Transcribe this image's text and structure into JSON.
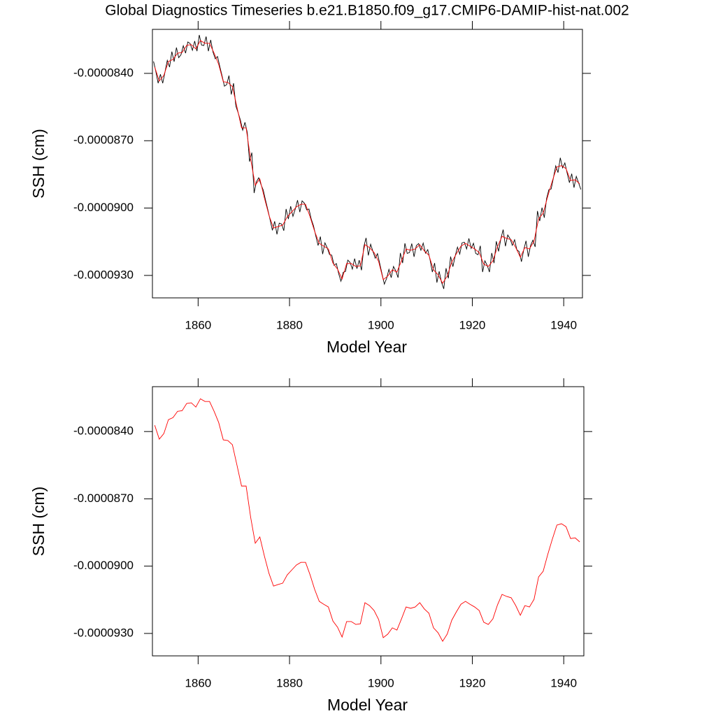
{
  "chart_data": [
    {
      "type": "line",
      "title": "Global Diagnostics Timeseries b.e21.B1850.f09_g17.CMIP6-DAMIP-hist-nat.002",
      "xlabel": "Model Year",
      "ylabel": "SSH (cm)",
      "xlim": [
        1850,
        1944.1
      ],
      "xticks": [
        1860,
        1880,
        1900,
        1920,
        1940
      ],
      "ylim": [
        -9.4e-05,
        -8.204e-05
      ],
      "yticks": [
        {
          "value": -9.3e-05,
          "label": "-0.0000930"
        },
        {
          "value": -9e-05,
          "label": "-0.0000900"
        },
        {
          "value": -8.7e-05,
          "label": "-0.0000870"
        },
        {
          "value": -8.4e-05,
          "label": "-0.0000840"
        }
      ],
      "series": [
        {
          "color": "#000000",
          "x": [
            1850.25,
            1850.75,
            1851.25,
            1851.75,
            1852.25,
            1852.75,
            1853.25,
            1853.75,
            1854.25,
            1854.75,
            1855.25,
            1855.75,
            1856.25,
            1856.75,
            1857.25,
            1857.75,
            1858.25,
            1858.75,
            1859.25,
            1859.75,
            1860.25,
            1860.75,
            1861.25,
            1861.75,
            1862.25,
            1862.75,
            1863.25,
            1863.75,
            1864.25,
            1864.75,
            1865.25,
            1865.75,
            1866.25,
            1866.75,
            1867.25,
            1867.75,
            1868.25,
            1868.75,
            1869.25,
            1869.75,
            1870.25,
            1870.75,
            1871.25,
            1871.75,
            1872.25,
            1872.75,
            1873.25,
            1873.75,
            1874.25,
            1874.75,
            1875.25,
            1875.75,
            1876.25,
            1876.75,
            1877.25,
            1877.75,
            1878.25,
            1878.75,
            1879.25,
            1879.75,
            1880.25,
            1880.75,
            1881.25,
            1881.75,
            1882.25,
            1882.75,
            1883.25,
            1883.75,
            1884.25,
            1884.75,
            1885.25,
            1885.75,
            1886.25,
            1886.75,
            1887.25,
            1887.75,
            1888.25,
            1888.75,
            1889.25,
            1889.75,
            1890.25,
            1890.75,
            1891.25,
            1891.75,
            1892.25,
            1892.75,
            1893.25,
            1893.75,
            1894.25,
            1894.75,
            1895.25,
            1895.75,
            1896.25,
            1896.75,
            1897.25,
            1897.75,
            1898.25,
            1898.75,
            1899.25,
            1899.75,
            1900.25,
            1900.75,
            1901.25,
            1901.75,
            1902.25,
            1902.75,
            1903.25,
            1903.75,
            1904.25,
            1904.75,
            1905.25,
            1905.75,
            1906.25,
            1906.75,
            1907.25,
            1907.75,
            1908.25,
            1908.75,
            1909.25,
            1909.75,
            1910.25,
            1910.75,
            1911.25,
            1911.75,
            1912.25,
            1912.75,
            1913.25,
            1913.75,
            1914.25,
            1914.75,
            1915.25,
            1915.75,
            1916.25,
            1916.75,
            1917.25,
            1917.75,
            1918.25,
            1918.75,
            1919.25,
            1919.75,
            1920.25,
            1920.75,
            1921.25,
            1921.75,
            1922.25,
            1922.75,
            1923.25,
            1923.75,
            1924.25,
            1924.75,
            1925.25,
            1925.75,
            1926.25,
            1926.75,
            1927.25,
            1927.75,
            1928.25,
            1928.75,
            1929.25,
            1929.75,
            1930.25,
            1930.75,
            1931.25,
            1931.75,
            1932.25,
            1932.75,
            1933.25,
            1933.75,
            1934.25,
            1934.75,
            1935.25,
            1935.75,
            1936.25,
            1936.75,
            1937.25,
            1937.75,
            1938.25,
            1938.75,
            1939.25,
            1939.75,
            1940.25,
            1940.75,
            1941.25,
            1941.75,
            1942.25,
            1942.75,
            1943.25,
            1943.75
          ],
          "values": [
            -8.347e-05,
            -8.392e-05,
            -8.444e-05,
            -8.404e-05,
            -8.444e-05,
            -8.394e-05,
            -8.342e-05,
            -8.372e-05,
            -8.303e-05,
            -8.348e-05,
            -8.285e-05,
            -8.33e-05,
            -8.317e-05,
            -8.277e-05,
            -8.31e-05,
            -8.26e-05,
            -8.267e-05,
            -8.297e-05,
            -8.256e-05,
            -8.301e-05,
            -8.229e-05,
            -8.274e-05,
            -8.276e-05,
            -8.236e-05,
            -8.301e-05,
            -8.251e-05,
            -8.305e-05,
            -8.335e-05,
            -8.325e-05,
            -8.37e-05,
            -8.412e-05,
            -8.457e-05,
            -8.45e-05,
            -8.41e-05,
            -8.494e-05,
            -8.444e-05,
            -8.545e-05,
            -8.575e-05,
            -8.608e-05,
            -8.653e-05,
            -8.618e-05,
            -8.663e-05,
            -8.793e-05,
            -8.753e-05,
            -8.933e-05,
            -8.883e-05,
            -8.865e-05,
            -8.895e-05,
            -8.92e-05,
            -8.965e-05,
            -9.007e-05,
            -9.052e-05,
            -9.099e-05,
            -9.059e-05,
            -9.117e-05,
            -9.067e-05,
            -9.071e-05,
            -9.101e-05,
            -9.004e-05,
            -9.049e-05,
            -8.992e-05,
            -9.037e-05,
            -9.005e-05,
            -8.965e-05,
            -9.018e-05,
            -8.968e-05,
            -8.978e-05,
            -9.008e-05,
            -9.004e-05,
            -9.049e-05,
            -9.079e-05,
            -9.124e-05,
            -9.167e-05,
            -9.127e-05,
            -9.205e-05,
            -9.155e-05,
            -9.177e-05,
            -9.207e-05,
            -9.21e-05,
            -9.255e-05,
            -9.247e-05,
            -9.292e-05,
            -9.326e-05,
            -9.286e-05,
            -9.282e-05,
            -9.232e-05,
            -9.242e-05,
            -9.272e-05,
            -9.225e-05,
            -9.27e-05,
            -9.232e-05,
            -9.277e-05,
            -9.173e-05,
            -9.133e-05,
            -9.211e-05,
            -9.161e-05,
            -9.193e-05,
            -9.223e-05,
            -9.203e-05,
            -9.248e-05,
            -9.294e-05,
            -9.339e-05,
            -9.313e-05,
            -9.273e-05,
            -9.31e-05,
            -9.26e-05,
            -9.28e-05,
            -9.31e-05,
            -9.2e-05,
            -9.245e-05,
            -9.157e-05,
            -9.202e-05,
            -9.198e-05,
            -9.158e-05,
            -9.217e-05,
            -9.167e-05,
            -9.158e-05,
            -9.188e-05,
            -9.156e-05,
            -9.201e-05,
            -9.185e-05,
            -9.23e-05,
            -9.285e-05,
            -9.245e-05,
            -9.332e-05,
            -9.282e-05,
            -9.33e-05,
            -9.36e-05,
            -9.268e-05,
            -9.313e-05,
            -9.216e-05,
            -9.261e-05,
            -9.214e-05,
            -9.174e-05,
            -9.205e-05,
            -9.155e-05,
            -9.152e-05,
            -9.182e-05,
            -9.135e-05,
            -9.18e-05,
            -9.157e-05,
            -9.202e-05,
            -9.208e-05,
            -9.168e-05,
            -9.285e-05,
            -9.235e-05,
            -9.255e-05,
            -9.285e-05,
            -9.2e-05,
            -9.245e-05,
            -9.148e-05,
            -9.193e-05,
            -9.136e-05,
            -9.096e-05,
            -9.17e-05,
            -9.12e-05,
            -9.136e-05,
            -9.166e-05,
            -9.141e-05,
            -9.186e-05,
            -9.194e-05,
            -9.239e-05,
            -9.186e-05,
            -9.146e-05,
            -9.217e-05,
            -9.167e-05,
            -9.143e-05,
            -9.173e-05,
            -9.013e-05,
            -9.058e-05,
            -8.998e-05,
            -9.043e-05,
            -8.958e-05,
            -8.918e-05,
            -8.915e-05,
            -8.865e-05,
            -8.812e-05,
            -8.842e-05,
            -8.776e-05,
            -8.821e-05,
            -8.799e-05,
            -8.844e-05,
            -8.887e-05,
            -8.847e-05,
            -8.909e-05,
            -8.859e-05,
            -8.887e-05,
            -8.917e-05
          ]
        },
        {
          "color": "#ff0000",
          "x": [
            1850.5,
            1851.5,
            1852.5,
            1853.5,
            1854.5,
            1855.5,
            1856.5,
            1857.5,
            1858.5,
            1859.5,
            1860.5,
            1861.5,
            1862.5,
            1863.5,
            1864.5,
            1865.5,
            1866.5,
            1867.5,
            1868.5,
            1869.5,
            1870.5,
            1871.5,
            1872.5,
            1873.5,
            1874.5,
            1875.5,
            1876.5,
            1877.5,
            1878.5,
            1879.5,
            1880.5,
            1881.5,
            1882.5,
            1883.5,
            1884.5,
            1885.5,
            1886.5,
            1887.5,
            1888.5,
            1889.5,
            1890.5,
            1891.5,
            1892.5,
            1893.5,
            1894.5,
            1895.5,
            1896.5,
            1897.5,
            1898.5,
            1899.5,
            1900.5,
            1901.5,
            1902.5,
            1903.5,
            1904.5,
            1905.5,
            1906.5,
            1907.5,
            1908.5,
            1909.5,
            1910.5,
            1911.5,
            1912.5,
            1913.5,
            1914.5,
            1915.5,
            1916.5,
            1917.5,
            1918.5,
            1919.5,
            1920.5,
            1921.5,
            1922.5,
            1923.5,
            1924.5,
            1925.5,
            1926.5,
            1927.5,
            1928.5,
            1929.5,
            1930.5,
            1931.5,
            1932.5,
            1933.5,
            1934.5,
            1935.5,
            1936.5,
            1937.5,
            1938.5,
            1939.5,
            1940.5,
            1941.5,
            1942.5,
            1943.5
          ],
          "values": [
            -8.372e-05,
            -8.434e-05,
            -8.409e-05,
            -8.347e-05,
            -8.338e-05,
            -8.31e-05,
            -8.307e-05,
            -8.275e-05,
            -8.272e-05,
            -8.291e-05,
            -8.254e-05,
            -8.266e-05,
            -8.266e-05,
            -8.31e-05,
            -8.36e-05,
            -8.437e-05,
            -8.44e-05,
            -8.459e-05,
            -8.55e-05,
            -8.643e-05,
            -8.643e-05,
            -8.783e-05,
            -8.898e-05,
            -8.87e-05,
            -8.955e-05,
            -9.032e-05,
            -9.089e-05,
            -9.082e-05,
            -9.076e-05,
            -9.039e-05,
            -9.017e-05,
            -8.995e-05,
            -8.983e-05,
            -8.983e-05,
            -9.039e-05,
            -9.104e-05,
            -9.157e-05,
            -9.17e-05,
            -9.182e-05,
            -9.245e-05,
            -9.272e-05,
            -9.316e-05,
            -9.247e-05,
            -9.247e-05,
            -9.26e-05,
            -9.257e-05,
            -9.163e-05,
            -9.176e-05,
            -9.198e-05,
            -9.238e-05,
            -9.319e-05,
            -9.303e-05,
            -9.275e-05,
            -9.285e-05,
            -9.235e-05,
            -9.182e-05,
            -9.188e-05,
            -9.182e-05,
            -9.163e-05,
            -9.191e-05,
            -9.21e-05,
            -9.275e-05,
            -9.297e-05,
            -9.335e-05,
            -9.303e-05,
            -9.241e-05,
            -9.204e-05,
            -9.17e-05,
            -9.157e-05,
            -9.17e-05,
            -9.182e-05,
            -9.198e-05,
            -9.25e-05,
            -9.26e-05,
            -9.235e-05,
            -9.173e-05,
            -9.126e-05,
            -9.135e-05,
            -9.141e-05,
            -9.176e-05,
            -9.219e-05,
            -9.176e-05,
            -9.182e-05,
            -9.148e-05,
            -9.048e-05,
            -9.023e-05,
            -8.948e-05,
            -8.88e-05,
            -8.817e-05,
            -8.811e-05,
            -8.824e-05,
            -8.877e-05,
            -8.874e-05,
            -8.892e-05
          ]
        }
      ]
    },
    {
      "type": "line",
      "xlabel": "Model Year",
      "ylabel": "SSH (cm)",
      "xlim": [
        1850,
        1944.4
      ],
      "xticks": [
        1860,
        1880,
        1900,
        1920,
        1940
      ],
      "ylim": [
        -9.4e-05,
        -8.2e-05
      ],
      "yticks": [
        {
          "value": -9.3e-05,
          "label": "-0.0000930"
        },
        {
          "value": -9e-05,
          "label": "-0.0000900"
        },
        {
          "value": -8.7e-05,
          "label": "-0.0000870"
        },
        {
          "value": -8.4e-05,
          "label": "-0.0000840"
        }
      ],
      "series": [
        {
          "color": "#ff0000",
          "x": [
            1850.5,
            1851.5,
            1852.5,
            1853.5,
            1854.5,
            1855.5,
            1856.5,
            1857.5,
            1858.5,
            1859.5,
            1860.5,
            1861.5,
            1862.5,
            1863.5,
            1864.5,
            1865.5,
            1866.5,
            1867.5,
            1868.5,
            1869.5,
            1870.5,
            1871.5,
            1872.5,
            1873.5,
            1874.5,
            1875.5,
            1876.5,
            1877.5,
            1878.5,
            1879.5,
            1880.5,
            1881.5,
            1882.5,
            1883.5,
            1884.5,
            1885.5,
            1886.5,
            1887.5,
            1888.5,
            1889.5,
            1890.5,
            1891.5,
            1892.5,
            1893.5,
            1894.5,
            1895.5,
            1896.5,
            1897.5,
            1898.5,
            1899.5,
            1900.5,
            1901.5,
            1902.5,
            1903.5,
            1904.5,
            1905.5,
            1906.5,
            1907.5,
            1908.5,
            1909.5,
            1910.5,
            1911.5,
            1912.5,
            1913.5,
            1914.5,
            1915.5,
            1916.5,
            1917.5,
            1918.5,
            1919.5,
            1920.5,
            1921.5,
            1922.5,
            1923.5,
            1924.5,
            1925.5,
            1926.5,
            1927.5,
            1928.5,
            1929.5,
            1930.5,
            1931.5,
            1932.5,
            1933.5,
            1934.5,
            1935.5,
            1936.5,
            1937.5,
            1938.5,
            1939.5,
            1940.5,
            1941.5,
            1942.5,
            1943.5
          ],
          "values": [
            -8.372e-05,
            -8.434e-05,
            -8.409e-05,
            -8.347e-05,
            -8.338e-05,
            -8.31e-05,
            -8.307e-05,
            -8.275e-05,
            -8.272e-05,
            -8.291e-05,
            -8.254e-05,
            -8.266e-05,
            -8.266e-05,
            -8.31e-05,
            -8.36e-05,
            -8.437e-05,
            -8.44e-05,
            -8.459e-05,
            -8.55e-05,
            -8.643e-05,
            -8.643e-05,
            -8.783e-05,
            -8.898e-05,
            -8.87e-05,
            -8.955e-05,
            -9.032e-05,
            -9.089e-05,
            -9.082e-05,
            -9.076e-05,
            -9.039e-05,
            -9.017e-05,
            -8.995e-05,
            -8.983e-05,
            -8.983e-05,
            -9.039e-05,
            -9.104e-05,
            -9.157e-05,
            -9.17e-05,
            -9.182e-05,
            -9.245e-05,
            -9.272e-05,
            -9.316e-05,
            -9.247e-05,
            -9.247e-05,
            -9.26e-05,
            -9.257e-05,
            -9.163e-05,
            -9.176e-05,
            -9.198e-05,
            -9.238e-05,
            -9.319e-05,
            -9.303e-05,
            -9.275e-05,
            -9.285e-05,
            -9.235e-05,
            -9.182e-05,
            -9.188e-05,
            -9.182e-05,
            -9.163e-05,
            -9.191e-05,
            -9.21e-05,
            -9.275e-05,
            -9.297e-05,
            -9.335e-05,
            -9.303e-05,
            -9.241e-05,
            -9.204e-05,
            -9.17e-05,
            -9.157e-05,
            -9.17e-05,
            -9.182e-05,
            -9.198e-05,
            -9.25e-05,
            -9.26e-05,
            -9.235e-05,
            -9.173e-05,
            -9.126e-05,
            -9.135e-05,
            -9.141e-05,
            -9.176e-05,
            -9.219e-05,
            -9.176e-05,
            -9.182e-05,
            -9.148e-05,
            -9.048e-05,
            -9.023e-05,
            -8.948e-05,
            -8.88e-05,
            -8.817e-05,
            -8.811e-05,
            -8.824e-05,
            -8.877e-05,
            -8.874e-05,
            -8.892e-05
          ]
        }
      ]
    }
  ]
}
